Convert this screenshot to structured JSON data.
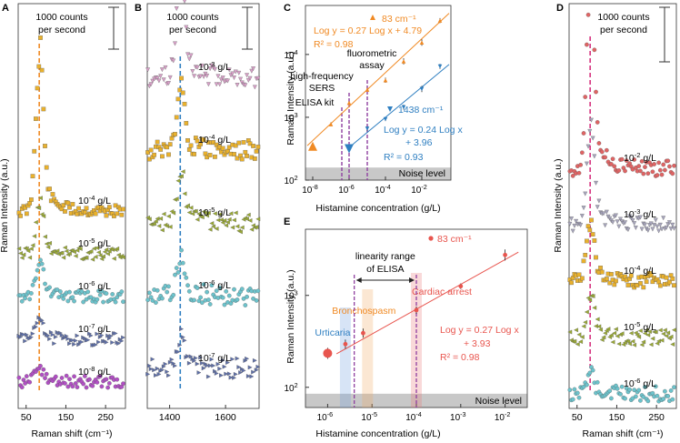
{
  "colors": {
    "orange": "#f08a24",
    "blue": "#2f7fc1",
    "red": "#e8554e",
    "purple": "#8f3fa0",
    "magenta": "#d6337f",
    "noise": "#c8c8c8",
    "c_yellow": "#e9b12d",
    "c_olive": "#9aaa34",
    "c_teal": "#6cc3cc",
    "c_slate": "#5e6fa8",
    "c_violet": "#b14fc4",
    "c_pink": "#d8a0c8",
    "c_red": "#e06464",
    "c_gray": "#a8a6bd"
  },
  "chart_data": [
    {
      "panel": "A",
      "type": "scatter",
      "title": "",
      "scale_bar": "1000 counts per second",
      "xlabel": "Raman shift (cm⁻¹)",
      "ylabel": "Raman Intensity (a.u.)",
      "x_ticks": [
        "50",
        "150",
        "250"
      ],
      "xlim": [
        30,
        300
      ],
      "peak_line_x": 83,
      "series": [
        {
          "name": "10⁻⁴ g/L",
          "exp": "-4",
          "color": "c_yellow",
          "baseline": 1,
          "peak": 3.4,
          "marker": "square"
        },
        {
          "name": "10⁻⁵ g/L",
          "exp": "-5",
          "color": "c_olive",
          "baseline": 2,
          "peak": 1.1,
          "marker": "triangle-left"
        },
        {
          "name": "10⁻⁶ g/L",
          "exp": "-6",
          "color": "c_teal",
          "baseline": 3,
          "peak": 0.8,
          "marker": "circle"
        },
        {
          "name": "10⁻⁷ g/L",
          "exp": "-7",
          "color": "c_slate",
          "baseline": 4,
          "peak": 0.5,
          "marker": "triangle-right"
        },
        {
          "name": "10⁻⁸ g/L",
          "exp": "-8",
          "color": "c_violet",
          "baseline": 5,
          "peak": 0.3,
          "marker": "circle"
        }
      ]
    },
    {
      "panel": "B",
      "type": "scatter",
      "title": "",
      "scale_bar": "1000 counts per second",
      "xlabel": "",
      "ylabel": "",
      "x_ticks": [
        "1400",
        "1600"
      ],
      "xlim": [
        1320,
        1720
      ],
      "peak_line_x": 1438,
      "series": [
        {
          "name": "10⁻³ g/L",
          "exp": "-3",
          "color": "c_pink",
          "baseline": 1,
          "peak": 1.4,
          "marker": "triangle-down"
        },
        {
          "name": "10⁻⁴ g/L",
          "exp": "-4",
          "color": "c_yellow",
          "baseline": 2,
          "peak": 0.8,
          "marker": "square"
        },
        {
          "name": "10⁻⁵ g/L",
          "exp": "-5",
          "color": "c_olive",
          "baseline": 3,
          "peak": 0.6,
          "marker": "triangle-left"
        },
        {
          "name": "10⁻⁶ g/L",
          "exp": "-6",
          "color": "c_teal",
          "baseline": 4,
          "peak": 0.5,
          "marker": "circle"
        },
        {
          "name": "10⁻⁷ g/L",
          "exp": "-7",
          "color": "c_slate",
          "baseline": 5,
          "peak": 0.4,
          "marker": "triangle-right"
        }
      ]
    },
    {
      "panel": "C",
      "type": "scatter",
      "xlabel": "Histamine concentration (g/L)",
      "ylabel": "Raman Intensity (a.u.)",
      "x_log_range": [
        -8.4,
        -0.4
      ],
      "y_log_range": [
        2,
        4.78
      ],
      "x_tick_exps": [
        "-8",
        "-6",
        "-4",
        "-2"
      ],
      "y_tick_exps": [
        "2",
        "3",
        "4"
      ],
      "noise_label": "Noise level",
      "noise_top_log": 2.2,
      "series": [
        {
          "name": "83 cm⁻¹",
          "color": "orange",
          "fit": "Log y = 0.27 Log x + 4.79",
          "r2": "R² = 0.98",
          "slope": 0.27,
          "intercept": 4.79,
          "x_log": [
            -8,
            -7,
            -6,
            -5,
            -4,
            -3,
            -2,
            -1
          ],
          "y_log": [
            2.54,
            2.89,
            3.23,
            3.44,
            3.59,
            3.89,
            4.19,
            4.54
          ],
          "err_log": [
            0.05,
            0.03,
            0.03,
            0.03,
            0.04,
            0.05,
            0.05,
            0.04
          ]
        },
        {
          "name": "1438 cm⁻¹",
          "color": "blue",
          "fit": "Log y = 0.24 Log x",
          "fit2": "+ 3.96",
          "r2": "R² = 0.93",
          "slope": 0.24,
          "intercept": 3.96,
          "x_log": [
            -6,
            -5,
            -4,
            -3,
            -2,
            -1
          ],
          "y_log": [
            2.5,
            2.82,
            2.97,
            3.16,
            3.45,
            3.81
          ],
          "err_log": [
            0.04,
            0.04,
            0.03,
            0.04,
            0.05,
            0.04
          ]
        }
      ],
      "annotations": [
        {
          "text": "ELISA kit",
          "x_log": -6.4
        },
        {
          "text": "high-frequency",
          "text2": "SERS",
          "x_log": -6.0
        },
        {
          "text": "fluorometric",
          "text2": "assay",
          "x_log": -5.0
        }
      ]
    },
    {
      "panel": "D",
      "type": "scatter",
      "title": "",
      "scale_bar": "1000 counts per second",
      "xlabel": "Raman shift (cm⁻¹)",
      "ylabel": "Raman Intensity (a.u.)",
      "x_ticks": [
        "50",
        "150",
        "250"
      ],
      "xlim": [
        30,
        300
      ],
      "peak_line_x": 83,
      "series": [
        {
          "name": "10⁻² g/L",
          "exp": "-2",
          "color": "c_red",
          "baseline": 1,
          "peak": 3.2,
          "marker": "circle"
        },
        {
          "name": "10⁻³ g/L",
          "exp": "-3",
          "color": "c_gray",
          "baseline": 2,
          "peak": 1.6,
          "marker": "triangle-down"
        },
        {
          "name": "10⁻⁴ g/L",
          "exp": "-4",
          "color": "c_yellow",
          "baseline": 3,
          "peak": 1.0,
          "marker": "square"
        },
        {
          "name": "10⁻⁵ g/L",
          "exp": "-5",
          "color": "c_olive",
          "baseline": 4,
          "peak": 0.7,
          "marker": "triangle-left"
        },
        {
          "name": "10⁻⁶ g/L",
          "exp": "-6",
          "color": "c_teal",
          "baseline": 5,
          "peak": 0.3,
          "marker": "circle"
        }
      ]
    },
    {
      "panel": "E",
      "type": "scatter",
      "xlabel": "Histamine concentration (g/L)",
      "ylabel": "Raman Intensity (a.u.)",
      "x_log_range": [
        -6.5,
        -1.5
      ],
      "y_log_range": [
        1.78,
        3.72
      ],
      "x_tick_exps": [
        "-6",
        "-5",
        "-4",
        "-3",
        "-2"
      ],
      "y_tick_exps": [
        "2",
        "3"
      ],
      "noise_label": "Noise level",
      "noise_top_log": 1.93,
      "series": [
        {
          "name": "83 cm⁻¹",
          "color": "red",
          "fit": "Log y = 0.27 Log x",
          "fit2": "+ 3.93",
          "r2": "R² = 0.98",
          "slope": 0.27,
          "intercept": 3.93,
          "x_log": [
            -6,
            -5.6,
            -5.2,
            -4,
            -3,
            -2
          ],
          "y_log": [
            2.37,
            2.47,
            2.59,
            2.84,
            3.1,
            3.44
          ],
          "err_log": [
            0.06,
            0.05,
            0.05,
            0.04,
            0.03,
            0.06
          ]
        }
      ],
      "range_label": "linearity range",
      "range_label2": "of ELISA",
      "range_x_log": [
        -5.4,
        -4.0
      ],
      "bands": [
        {
          "text": "Urticaria",
          "x_log": -5.6,
          "color": "#6f9fe0"
        },
        {
          "text": "Bronchospasm",
          "x_log": -5.1,
          "color": "#f0a860"
        },
        {
          "text": "Cardiac arrest",
          "x_log": -4.0,
          "color": "#e87878"
        }
      ]
    }
  ],
  "panel_labels": {
    "a": "A",
    "b": "B",
    "c": "C",
    "d": "D",
    "e": "E"
  }
}
